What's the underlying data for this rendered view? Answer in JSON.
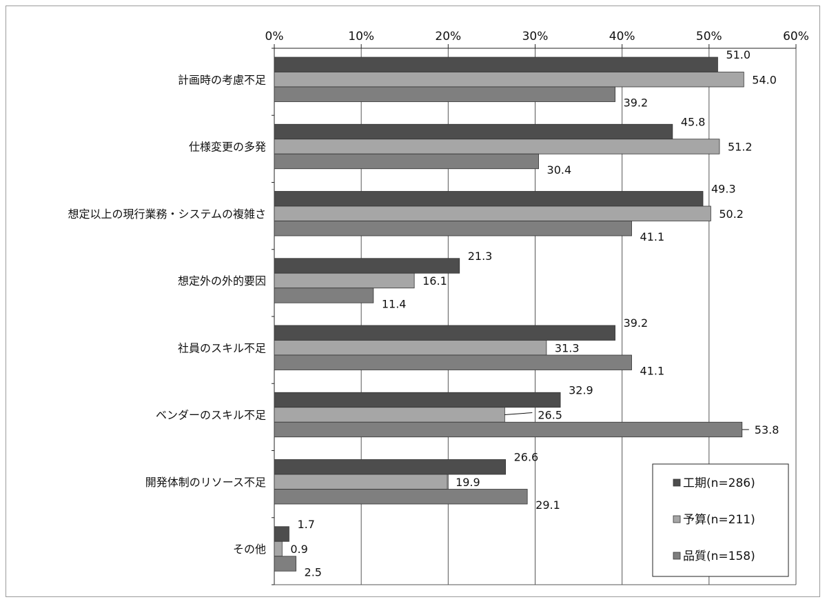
{
  "chart_data": {
    "type": "bar",
    "orientation": "horizontal",
    "xlim": [
      0,
      60
    ],
    "x_ticks": [
      "0%",
      "10%",
      "20%",
      "30%",
      "40%",
      "50%",
      "60%"
    ],
    "grid": true,
    "legend_position": "bottom-right",
    "categories": [
      "計画時の考慮不足",
      "仕様変更の多発",
      "想定以上の現行業務・システムの複雑さ",
      "想定外の外的要因",
      "社員のスキル不足",
      "ベンダーのスキル不足",
      "開発体制のリソース不足",
      "その他"
    ],
    "series": [
      {
        "name": "工期(n=286)",
        "color": "#4d4d4d",
        "values": [
          51.0,
          45.8,
          49.3,
          21.3,
          39.2,
          32.9,
          26.6,
          1.7
        ]
      },
      {
        "name": "予算(n=211)",
        "color": "#a6a6a6",
        "values": [
          54.0,
          51.2,
          50.2,
          16.1,
          31.3,
          26.5,
          19.9,
          0.9
        ]
      },
      {
        "name": "品質(n=158)",
        "color": "#7f7f7f",
        "values": [
          39.2,
          30.4,
          41.1,
          11.4,
          41.1,
          53.8,
          29.1,
          2.5
        ]
      }
    ],
    "value_labels": [
      [
        "51.0",
        "45.8",
        "49.3",
        "21.3",
        "39.2",
        "32.9",
        "26.6",
        "1.7"
      ],
      [
        "54.0",
        "51.2",
        "50.2",
        "16.1",
        "31.3",
        "26.5",
        "19.9",
        "0.9"
      ],
      [
        "39.2",
        "30.4",
        "41.1",
        "11.4",
        "41.1",
        "53.8",
        "29.1",
        "2.5"
      ]
    ]
  }
}
